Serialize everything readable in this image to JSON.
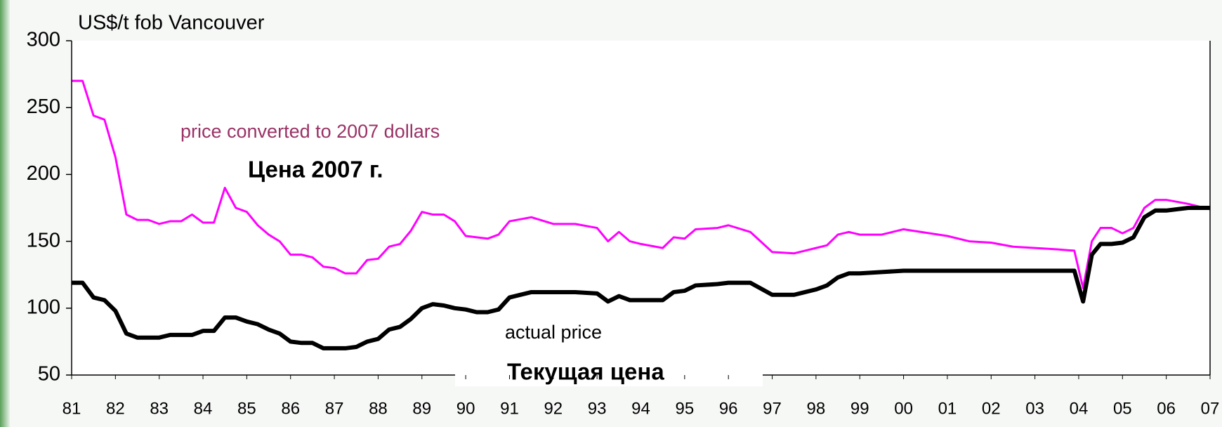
{
  "chart_data": {
    "type": "line",
    "annotations": [
      "US$/t fob Vancouver",
      "price converted to 2007 dollars",
      "Цена 2007 г.",
      "actual price",
      "Текущая цена"
    ],
    "x": [
      1981,
      1981.25,
      1981.5,
      1981.75,
      1982,
      1982.25,
      1982.5,
      1982.75,
      1983,
      1983.25,
      1983.5,
      1983.75,
      1984,
      1984.25,
      1984.5,
      1984.75,
      1985,
      1985.25,
      1985.5,
      1985.75,
      1986,
      1986.25,
      1986.5,
      1986.75,
      1987,
      1987.25,
      1987.5,
      1987.75,
      1988,
      1988.25,
      1988.5,
      1988.75,
      1989,
      1989.25,
      1989.5,
      1989.75,
      1990,
      1990.25,
      1990.5,
      1990.75,
      1991,
      1991.5,
      1992,
      1992.5,
      1993,
      1993.25,
      1993.5,
      1993.75,
      1994,
      1994.5,
      1994.75,
      1995,
      1995.25,
      1995.75,
      1996,
      1996.5,
      1997,
      1997.5,
      1998,
      1998.25,
      1998.5,
      1998.75,
      1999,
      1999.5,
      2000,
      2001,
      2001.5,
      2002,
      2002.5,
      2003,
      2003.5,
      2003.9,
      2004.1,
      2004.3,
      2004.5,
      2004.75,
      2005,
      2005.25,
      2005.5,
      2005.75,
      2006,
      2006.5,
      2007
    ],
    "series": [
      {
        "color": "#ff00ff",
        "width": 3,
        "values": [
          270,
          270,
          244,
          241,
          213,
          170,
          166,
          166,
          163,
          165,
          165,
          170,
          164,
          164,
          190,
          175,
          172,
          162,
          155,
          150,
          140,
          140,
          138,
          131,
          130,
          126,
          126,
          136,
          137,
          146,
          148,
          158,
          172,
          170,
          170,
          165,
          154,
          153,
          152,
          155,
          165,
          168,
          163,
          163,
          160,
          150,
          157,
          150,
          148,
          145,
          153,
          152,
          159,
          160,
          162,
          157,
          142,
          141,
          145,
          147,
          155,
          157,
          155,
          155,
          159,
          154,
          150,
          149,
          146,
          145,
          144,
          143,
          115,
          150,
          160,
          160,
          156,
          160,
          175,
          181,
          181,
          178,
          174
        ]
      },
      {
        "color": "#000000",
        "width": 6,
        "values": [
          119,
          119,
          108,
          106,
          98,
          81,
          78,
          78,
          78,
          80,
          80,
          80,
          83,
          83,
          93,
          93,
          90,
          88,
          84,
          81,
          75,
          74,
          74,
          70,
          70,
          70,
          71,
          75,
          77,
          84,
          86,
          92,
          100,
          103,
          102,
          100,
          99,
          97,
          97,
          99,
          108,
          112,
          112,
          112,
          111,
          105,
          109,
          106,
          106,
          106,
          112,
          113,
          117,
          118,
          119,
          119,
          110,
          110,
          114,
          117,
          123,
          126,
          126,
          127,
          128,
          128,
          128,
          128,
          128,
          128,
          128,
          128,
          105,
          140,
          148,
          148,
          149,
          153,
          168,
          173,
          173,
          175,
          175
        ]
      }
    ],
    "xlim": [
      1981,
      2007
    ],
    "xticks": [
      {
        "value": 1981,
        "label": "81"
      },
      {
        "value": 1982,
        "label": "82"
      },
      {
        "value": 1983,
        "label": "83"
      },
      {
        "value": 1984,
        "label": "84"
      },
      {
        "value": 1985,
        "label": "85"
      },
      {
        "value": 1986,
        "label": "86"
      },
      {
        "value": 1987,
        "label": "87"
      },
      {
        "value": 1988,
        "label": "88"
      },
      {
        "value": 1989,
        "label": "89"
      },
      {
        "value": 1990,
        "label": "90"
      },
      {
        "value": 1991,
        "label": "91"
      },
      {
        "value": 1992,
        "label": "92"
      },
      {
        "value": 1993,
        "label": "93"
      },
      {
        "value": 1994,
        "label": "94"
      },
      {
        "value": 1995,
        "label": "95"
      },
      {
        "value": 1996,
        "label": "96"
      },
      {
        "value": 1997,
        "label": "97"
      },
      {
        "value": 1998,
        "label": "98"
      },
      {
        "value": 1999,
        "label": "99"
      },
      {
        "value": 2000,
        "label": "00"
      },
      {
        "value": 2001,
        "label": "01"
      },
      {
        "value": 2002,
        "label": "02"
      },
      {
        "value": 2003,
        "label": "03"
      },
      {
        "value": 2004,
        "label": "04"
      },
      {
        "value": 2005,
        "label": "05"
      },
      {
        "value": 2006,
        "label": "06"
      },
      {
        "value": 2007,
        "label": "07"
      }
    ],
    "ylim": [
      50,
      300
    ],
    "yticks": [
      50,
      100,
      150,
      200,
      250,
      300
    ],
    "grid": false
  }
}
